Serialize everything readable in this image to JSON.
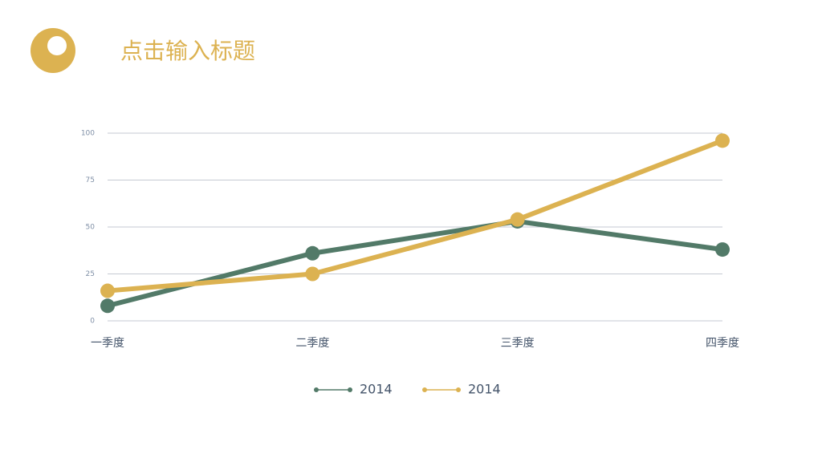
{
  "header": {
    "title": "点击输入标题"
  },
  "chart_data": {
    "type": "line",
    "categories": [
      "一季度",
      "二季度",
      "三季度",
      "四季度"
    ],
    "series": [
      {
        "name": "2014",
        "color": "#527a68",
        "values": [
          8,
          36,
          53,
          38
        ]
      },
      {
        "name": "2014",
        "color": "#dcb251",
        "values": [
          16,
          25,
          54,
          96
        ]
      }
    ],
    "ylim": [
      0,
      100
    ],
    "yticks": [
      0,
      25,
      50,
      75,
      100
    ],
    "grid": true
  }
}
